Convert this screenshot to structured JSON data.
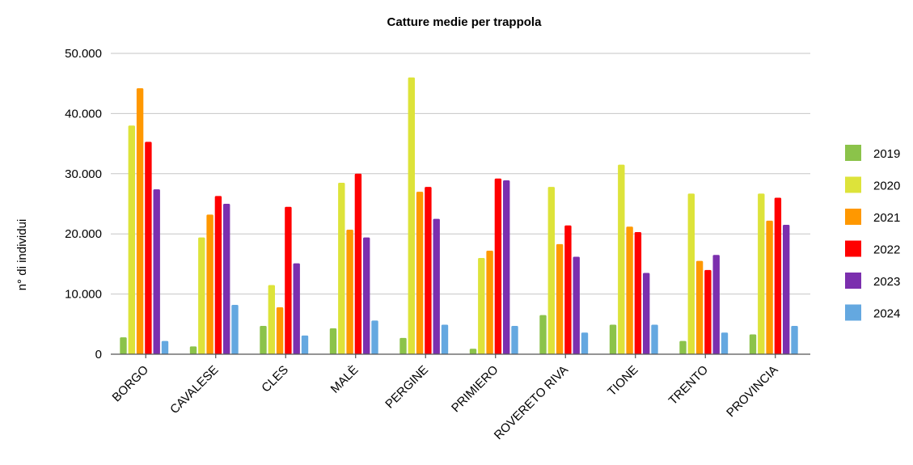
{
  "chart_data": {
    "type": "bar",
    "title": "Catture medie per trappola",
    "ylabel": "n° di individui",
    "xlabel": "",
    "ylim": [
      0,
      50000
    ],
    "yticks": [
      0,
      10000,
      20000,
      30000,
      40000,
      50000
    ],
    "ytick_labels": [
      "0",
      "10.000",
      "20.000",
      "30.000",
      "40.000",
      "50.000"
    ],
    "grid": true,
    "legend_position": "right",
    "categories": [
      "BORGO",
      "CAVALESE",
      "CLES",
      "MALÈ",
      "PERGINE",
      "PRIMIERO",
      "ROVERETO RIVA",
      "TIONE",
      "TRENTO",
      "PROVINCIA"
    ],
    "series": [
      {
        "name": "2019",
        "color": "#8bc34a",
        "values": [
          2800,
          1300,
          4700,
          4300,
          2700,
          900,
          6500,
          4900,
          2200,
          3300
        ]
      },
      {
        "name": "2020",
        "color": "#dde33a",
        "values": [
          38000,
          19400,
          11500,
          28500,
          46000,
          16000,
          27800,
          31500,
          26700,
          26700
        ]
      },
      {
        "name": "2021",
        "color": "#ff9800",
        "values": [
          44200,
          23200,
          7800,
          20700,
          27000,
          17200,
          18300,
          21200,
          15500,
          22200
        ]
      },
      {
        "name": "2022",
        "color": "#ff0000",
        "values": [
          35300,
          26300,
          24500,
          30000,
          27800,
          29200,
          21400,
          20300,
          14000,
          26000
        ]
      },
      {
        "name": "2023",
        "color": "#7b2fae",
        "values": [
          27400,
          25000,
          15100,
          19400,
          22500,
          28900,
          16200,
          13500,
          16500,
          21500
        ]
      },
      {
        "name": "2024",
        "color": "#64a8e0",
        "values": [
          2200,
          8200,
          3100,
          5600,
          4900,
          4700,
          3600,
          4900,
          3600,
          4700
        ]
      }
    ]
  }
}
